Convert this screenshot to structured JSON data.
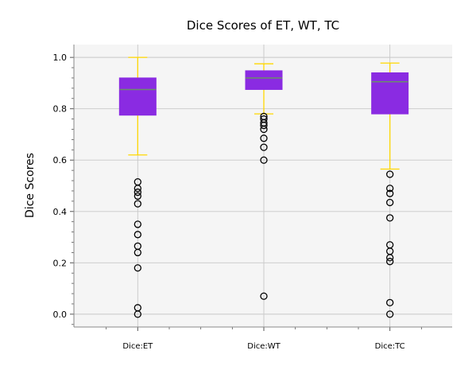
{
  "chart_data": {
    "type": "box",
    "title": "Dice Scores of ET, WT, TC",
    "xlabel": "",
    "ylabel": "Dice Scores",
    "ylim": [
      -0.05,
      1.05
    ],
    "yticks": [
      "0.0",
      "0.2",
      "0.4",
      "0.6",
      "0.8",
      "1.0"
    ],
    "grid": true,
    "categories": [
      "Dice:ET",
      "Dice:WT",
      "Dice:TC"
    ],
    "boxes": [
      {
        "label": "Dice:ET",
        "whisker_low": 0.62,
        "q1": 0.775,
        "median": 0.875,
        "q3": 0.92,
        "whisker_high": 1.0,
        "outliers": [
          0.515,
          0.49,
          0.475,
          0.46,
          0.43,
          0.35,
          0.31,
          0.265,
          0.24,
          0.18,
          0.025,
          0.0
        ]
      },
      {
        "label": "Dice:WT",
        "whisker_low": 0.78,
        "q1": 0.875,
        "median": 0.92,
        "q3": 0.948,
        "whisker_high": 0.975,
        "outliers": [
          0.77,
          0.76,
          0.745,
          0.735,
          0.72,
          0.685,
          0.65,
          0.6,
          0.07
        ]
      },
      {
        "label": "Dice:TC",
        "whisker_low": 0.565,
        "q1": 0.78,
        "median": 0.905,
        "q3": 0.94,
        "whisker_high": 0.978,
        "outliers": [
          0.545,
          0.49,
          0.47,
          0.435,
          0.375,
          0.27,
          0.245,
          0.22,
          0.205,
          0.045,
          0.0
        ]
      }
    ],
    "colors": {
      "box_fill": "#8a2be2",
      "box_edge": "#8a2be2",
      "median": "#6b8e6b",
      "whisker": "#ffd700",
      "flier_edge": "#000000",
      "plot_bg": "#f5f5f5",
      "grid": "#c8c8c8"
    }
  }
}
